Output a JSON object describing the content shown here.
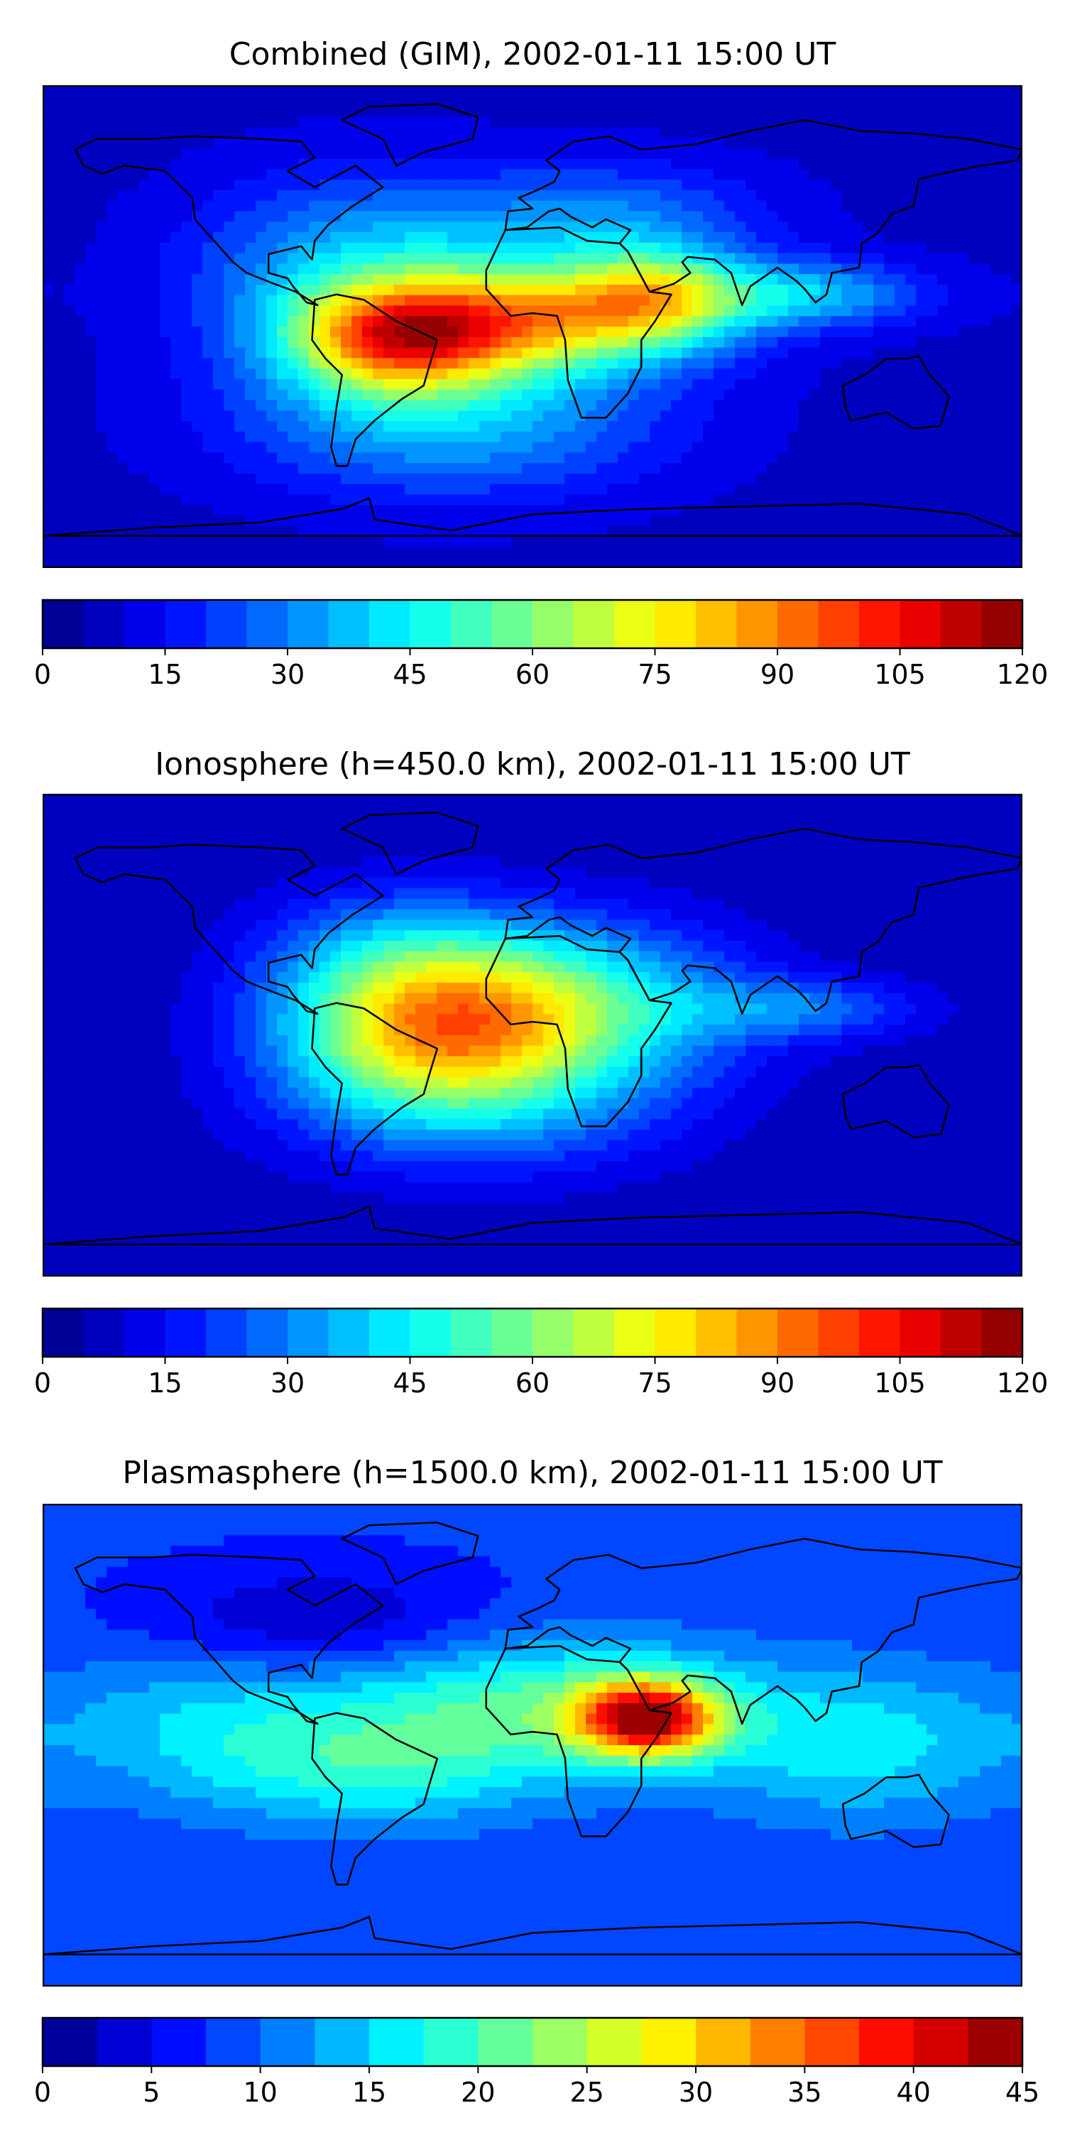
{
  "panels": [
    {
      "title": "Combined (GIM), 2002-01-11 15:00 UT",
      "colorbar": {
        "min": 0,
        "max": 120,
        "levels": 24,
        "ticks": [
          "0",
          "15",
          "30",
          "45",
          "60",
          "75",
          "90",
          "105",
          "120"
        ]
      },
      "field": {
        "background": 8,
        "blobs": [
          {
            "lon": -50,
            "lat": -5,
            "sx": 28,
            "sy": 14,
            "amp": 60
          },
          {
            "lon": 5,
            "lat": 3,
            "sx": 42,
            "sy": 14,
            "amp": 58
          },
          {
            "lon": 45,
            "lat": 12,
            "sx": 22,
            "sy": 12,
            "amp": 38
          },
          {
            "lon": 100,
            "lat": 12,
            "sx": 32,
            "sy": 9,
            "amp": 28
          },
          {
            "lon": -60,
            "lat": 20,
            "sx": 45,
            "sy": 25,
            "amp": 30
          },
          {
            "lon": 30,
            "lat": 40,
            "sx": 40,
            "sy": 15,
            "amp": 20
          },
          {
            "lon": -30,
            "lat": -35,
            "sx": 55,
            "sy": 20,
            "amp": 28
          }
        ]
      }
    },
    {
      "title": "Ionosphere  (h=450.0 km), 2002-01-11 15:00 UT",
      "colorbar": {
        "min": 0,
        "max": 120,
        "levels": 24,
        "ticks": [
          "0",
          "15",
          "30",
          "45",
          "60",
          "75",
          "90",
          "105",
          "120"
        ]
      },
      "field": {
        "background": 6,
        "blobs": [
          {
            "lon": -40,
            "lat": 0,
            "sx": 38,
            "sy": 20,
            "amp": 55
          },
          {
            "lon": 10,
            "lat": 10,
            "sx": 45,
            "sy": 22,
            "amp": 45
          },
          {
            "lon": -50,
            "lat": 30,
            "sx": 35,
            "sy": 18,
            "amp": 22
          },
          {
            "lon": 100,
            "lat": 10,
            "sx": 30,
            "sy": 8,
            "amp": 20
          },
          {
            "lon": -20,
            "lat": -30,
            "sx": 50,
            "sy": 18,
            "amp": 18
          }
        ]
      }
    },
    {
      "title": "Plasmasphere (h=1500.0 km), 2002-01-11 15:00 UT",
      "colorbar": {
        "min": 0,
        "max": 45,
        "levels": 18,
        "ticks": [
          "0",
          "5",
          "10",
          "15",
          "20",
          "25",
          "30",
          "35",
          "40",
          "45"
        ]
      },
      "field": {
        "background": 8,
        "blobs": [
          {
            "lon": 42,
            "lat": 10,
            "sx": 18,
            "sy": 10,
            "amp": 30
          },
          {
            "lon": 0,
            "lat": 15,
            "sx": 55,
            "sy": 18,
            "amp": 12
          },
          {
            "lon": -60,
            "lat": -10,
            "sx": 45,
            "sy": 15,
            "amp": 8
          },
          {
            "lon": 120,
            "lat": 0,
            "sx": 40,
            "sy": 20,
            "amp": 8
          },
          {
            "lon": -120,
            "lat": 10,
            "sx": 40,
            "sy": 20,
            "amp": 6
          },
          {
            "lon": -80,
            "lat": 45,
            "sx": 45,
            "sy": 15,
            "amp": -6
          }
        ]
      }
    }
  ]
}
